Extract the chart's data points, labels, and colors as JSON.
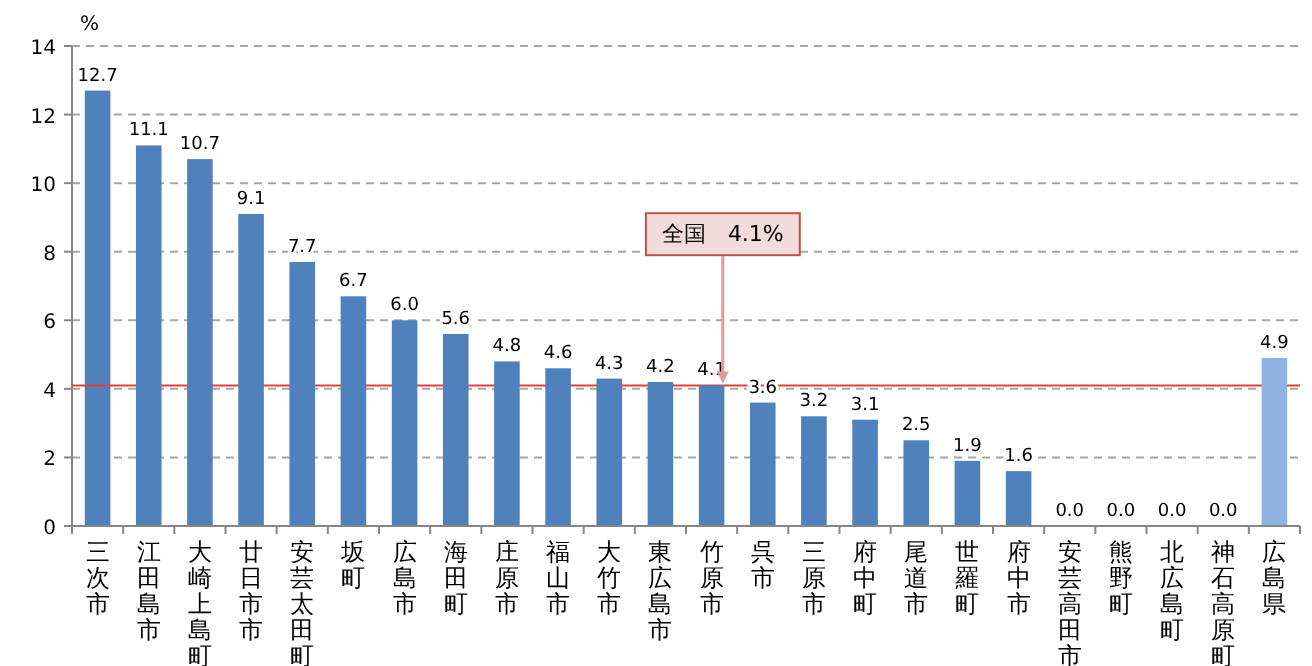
{
  "chart_data": {
    "type": "bar",
    "ylabel": "%",
    "categories": [
      "三次市",
      "江田島市",
      "大崎上島町",
      "廿日市市",
      "安芸太田町",
      "坂町",
      "広島市",
      "海田町",
      "庄原市",
      "福山市",
      "大竹市",
      "東広島市",
      "竹原市",
      "呉市",
      "三原市",
      "府中町",
      "尾道市",
      "世羅町",
      "府中市",
      "安芸高田市",
      "熊野町",
      "北広島町",
      "神石高原町",
      "広島県"
    ],
    "values": [
      12.7,
      11.1,
      10.7,
      9.1,
      7.7,
      6.7,
      6.0,
      5.6,
      4.8,
      4.6,
      4.3,
      4.2,
      4.1,
      3.6,
      3.2,
      3.1,
      2.5,
      1.9,
      1.6,
      0.0,
      0.0,
      0.0,
      0.0,
      4.9
    ],
    "value_labels": [
      "12.7",
      "11.1",
      "10.7",
      "9.1",
      "7.7",
      "6.7",
      "6.0",
      "5.6",
      "4.8",
      "4.6",
      "4.3",
      "4.2",
      "4.1",
      "3.6",
      "3.2",
      "3.1",
      "2.5",
      "1.9",
      "1.6",
      "0.0",
      "0.0",
      "0.0",
      "0.0",
      "4.9"
    ],
    "colors": [
      "#4f81bd",
      "#4f81bd",
      "#4f81bd",
      "#4f81bd",
      "#4f81bd",
      "#4f81bd",
      "#4f81bd",
      "#4f81bd",
      "#4f81bd",
      "#4f81bd",
      "#4f81bd",
      "#4f81bd",
      "#4f81bd",
      "#4f81bd",
      "#4f81bd",
      "#4f81bd",
      "#4f81bd",
      "#4f81bd",
      "#4f81bd",
      "#4f81bd",
      "#4f81bd",
      "#4f81bd",
      "#4f81bd",
      "#8eb4e3"
    ],
    "ylim": [
      0,
      14
    ],
    "yticks": [
      0,
      2,
      4,
      6,
      8,
      10,
      12,
      14
    ],
    "grid": "y",
    "ref_lines": [
      {
        "axis": "y",
        "value": 4.1,
        "label": "全国　4.1%",
        "color": "#e0403a"
      }
    ]
  }
}
